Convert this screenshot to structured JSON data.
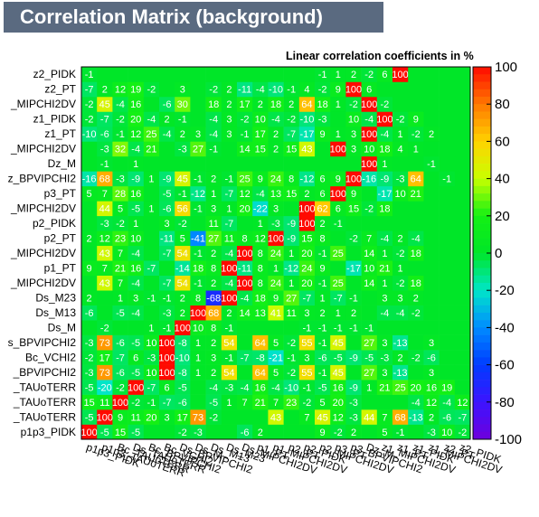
{
  "title": "Correlation Matrix (background)",
  "subtitle": "Linear correlation coefficients in %",
  "chart_data": {
    "type": "heatmap",
    "variables": [
      "p1p3_PIDK",
      "p1p3_TAUoTERR",
      "Bc_TAUoTERR",
      "Ds_TAUoTERR",
      "Bc_BPVIPCHI2",
      "Bc_VCHI2",
      "Ds_BPVIPCHI2",
      "Ds_M",
      "Ds_M13",
      "Ds_M23",
      "Ds_MIPCHI2DV",
      "p1_PT",
      "p1_MIPCHI2DV",
      "p2_PT",
      "p2_PIDK",
      "p2_MIPCHI2DV",
      "p3_PT",
      "p3_BPVIPCHI2",
      "Dz_M",
      "z1_MIPCHI2DV",
      "z1_PT",
      "z1_PIDK",
      "z1_MIPCHI2DV",
      "z2_PT",
      "z2_PIDK"
    ],
    "y_labels": [
      "p1p3_PIDK",
      "_TAUoTERR",
      "_TAUoTERR",
      "_TAUoTERR",
      "_BPVIPCHI2",
      "Bc_VCHI2",
      "s_BPVIPCHI2",
      "Ds_M",
      "Ds_M13",
      "Ds_M23",
      "_MIPCHI2DV",
      "p1_PT",
      "_MIPCHI2DV",
      "p2_PT",
      "p2_PIDK",
      "_MIPCHI2DV",
      "p3_PT",
      "z_BPVIPCHI2",
      "Dz_M",
      "_MIPCHI2DV",
      "z1_PT",
      "z1_PIDK",
      "_MIPCHI2DV",
      "z2_PT",
      "z2_PIDK"
    ],
    "values": [
      [
        100,
        -5,
        15,
        -5,
        0,
        0,
        -2,
        -3,
        0,
        0,
        -6,
        2,
        0,
        0,
        0,
        9,
        -2,
        2,
        0,
        5,
        -1,
        0,
        -3,
        10,
        -2
      ],
      [
        -5,
        100,
        9,
        11,
        20,
        3,
        17,
        73,
        -2,
        0,
        0,
        0,
        43,
        0,
        7,
        45,
        12,
        -3,
        44,
        7,
        68,
        -13,
        2,
        -6,
        -7
      ],
      [
        15,
        11,
        100,
        -2,
        -1,
        -7,
        -6,
        0,
        -5,
        1,
        7,
        21,
        7,
        23,
        -2,
        5,
        20,
        -3,
        0,
        0,
        0,
        -4,
        12,
        -4,
        12
      ],
      [
        -5,
        -20,
        -2,
        100,
        -7,
        6,
        -5,
        0,
        -4,
        -3,
        -4,
        16,
        -4,
        -10,
        -1,
        -5,
        16,
        -9,
        1,
        21,
        25,
        20,
        16,
        19,
        0
      ],
      [
        -3,
        73,
        -6,
        -5,
        10,
        100,
        -8,
        1,
        2,
        54,
        0,
        64,
        5,
        -2,
        55,
        -1,
        45,
        0,
        27,
        3,
        -13,
        0,
        3,
        0,
        0
      ],
      [
        -2,
        17,
        -7,
        6,
        -3,
        100,
        -10,
        1,
        3,
        -1,
        -7,
        -8,
        -21,
        -1,
        3,
        -6,
        -5,
        -9,
        -5,
        -3,
        2,
        -2,
        -6,
        0,
        0
      ],
      [
        -3,
        73,
        -6,
        -5,
        10,
        100,
        -8,
        1,
        2,
        54,
        0,
        64,
        5,
        -2,
        55,
        -1,
        45,
        0,
        27,
        3,
        -13,
        0,
        3,
        0,
        0
      ],
      [
        0,
        -2,
        0,
        0,
        1,
        -1,
        100,
        10,
        8,
        -1,
        0,
        0,
        0,
        0,
        -1,
        -1,
        -1,
        -1,
        -1,
        0,
        0,
        0,
        0,
        0,
        0
      ],
      [
        -6,
        0,
        -5,
        -4,
        0,
        -3,
        2,
        100,
        68,
        2,
        14,
        13,
        41,
        11,
        3,
        2,
        1,
        2,
        0,
        -4,
        -4,
        -2,
        0,
        0,
        0
      ],
      [
        2,
        0,
        1,
        3,
        -1,
        -1,
        2,
        8,
        -68,
        100,
        -4,
        18,
        9,
        27,
        -7,
        1,
        -7,
        -1,
        0,
        3,
        3,
        2,
        0,
        0,
        0
      ],
      [
        0,
        43,
        7,
        -4,
        0,
        -7,
        54,
        -1,
        2,
        -4,
        100,
        8,
        24,
        1,
        20,
        -1,
        25,
        0,
        14,
        1,
        -2,
        18,
        0,
        0,
        0
      ],
      [
        9,
        7,
        21,
        16,
        -7,
        0,
        -14,
        18,
        8,
        100,
        -11,
        8,
        1,
        -12,
        24,
        9,
        0,
        -17,
        10,
        21,
        1,
        0,
        0,
        0,
        0
      ],
      [
        0,
        43,
        7,
        -4,
        0,
        -7,
        54,
        -1,
        2,
        -4,
        100,
        8,
        24,
        1,
        20,
        -1,
        25,
        0,
        14,
        1,
        -2,
        18,
        0,
        0,
        0
      ],
      [
        2,
        12,
        23,
        10,
        0,
        -11,
        5,
        -41,
        27,
        11,
        8,
        12,
        100,
        -9,
        15,
        8,
        0,
        -2,
        7,
        -4,
        2,
        -4,
        0,
        0,
        0
      ],
      [
        0,
        -3,
        -2,
        1,
        0,
        3,
        -2,
        0,
        11,
        -7,
        0,
        1,
        -3,
        -9,
        100,
        2,
        -1,
        0,
        0,
        0,
        0,
        0,
        0,
        0,
        0
      ],
      [
        0,
        44,
        5,
        -5,
        1,
        -6,
        56,
        -1,
        3,
        1,
        20,
        -22,
        3,
        0,
        100,
        62,
        6,
        15,
        -2,
        18,
        0,
        0,
        0,
        0,
        0
      ],
      [
        5,
        7,
        28,
        16,
        0,
        -5,
        -1,
        -12,
        1,
        -7,
        12,
        -4,
        13,
        15,
        2,
        6,
        100,
        9,
        0,
        -17,
        10,
        21,
        0,
        0,
        0
      ],
      [
        -16,
        68,
        -3,
        -9,
        1,
        -9,
        45,
        -1,
        2,
        -1,
        25,
        9,
        24,
        8,
        -12,
        6,
        9,
        100,
        -16,
        -9,
        -3,
        64,
        0,
        -1,
        0
      ],
      [
        0,
        -1,
        0,
        1,
        0,
        0,
        0,
        0,
        0,
        0,
        0,
        0,
        0,
        0,
        0,
        0,
        0,
        0,
        100,
        1,
        0,
        0,
        -1,
        0,
        0
      ],
      [
        0,
        -3,
        32,
        -4,
        21,
        0,
        -3,
        27,
        -1,
        0,
        14,
        15,
        2,
        15,
        43,
        0,
        100,
        3,
        10,
        18,
        4,
        1,
        0,
        0,
        0
      ],
      [
        -10,
        -6,
        -1,
        12,
        25,
        -4,
        2,
        3,
        -4,
        3,
        -1,
        17,
        2,
        -7,
        -17,
        9,
        1,
        3,
        100,
        -4,
        1,
        -2,
        2,
        0,
        0
      ],
      [
        -2,
        -7,
        -2,
        20,
        -4,
        2,
        -1,
        0,
        -4,
        3,
        -2,
        10,
        -4,
        -2,
        -10,
        -3,
        0,
        10,
        -4,
        100,
        -2,
        9,
        0,
        0,
        0
      ],
      [
        -2,
        45,
        -4,
        16,
        0,
        -6,
        30,
        0,
        18,
        2,
        17,
        2,
        18,
        2,
        64,
        18,
        1,
        -2,
        100,
        -2,
        0,
        0,
        0,
        0,
        0
      ],
      [
        -7,
        2,
        12,
        19,
        -2,
        0,
        3,
        0,
        -2,
        2,
        -11,
        -4,
        -10,
        -1,
        4,
        -2,
        9,
        100,
        6,
        0,
        0,
        0,
        0,
        0,
        0
      ],
      [
        -1,
        0,
        0,
        0,
        0,
        0,
        0,
        0,
        0,
        0,
        0,
        0,
        0,
        0,
        0,
        -1,
        1,
        2,
        -2,
        6,
        100,
        0,
        0,
        0,
        0
      ]
    ],
    "zlim": [
      -100,
      100
    ],
    "z_ticks": [
      100,
      80,
      60,
      40,
      20,
      0,
      -20,
      -40,
      -60,
      -80,
      -100
    ]
  }
}
